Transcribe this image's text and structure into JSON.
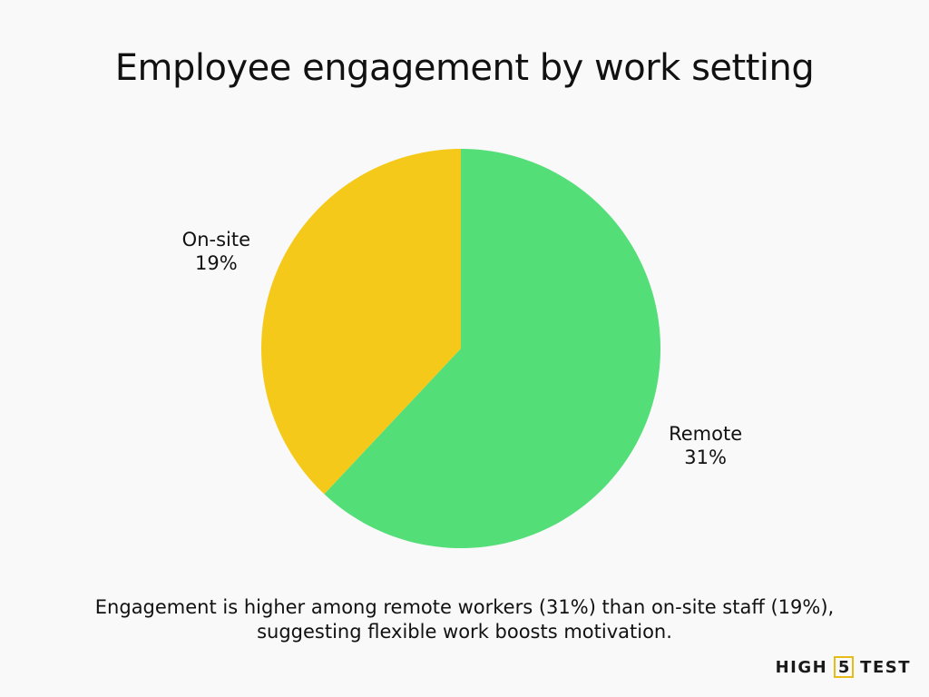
{
  "chart_data": {
    "type": "pie",
    "title": "Employee engagement by work setting",
    "slices": [
      {
        "label": "Remote",
        "value": 31,
        "value_label": "31%",
        "color": "#54de78"
      },
      {
        "label": "On-site",
        "value": 19,
        "value_label": "19%",
        "color": "#f5c919"
      }
    ],
    "start_angle": "12 o'clock",
    "direction": "clockwise"
  },
  "caption": {
    "line1": "Engagement is higher among remote workers (31%) than on-site staff (19%),",
    "line2": "suggesting flexible work boosts motivation."
  },
  "brand": {
    "left": "HIGH",
    "middle": "5",
    "right": "TEST"
  }
}
